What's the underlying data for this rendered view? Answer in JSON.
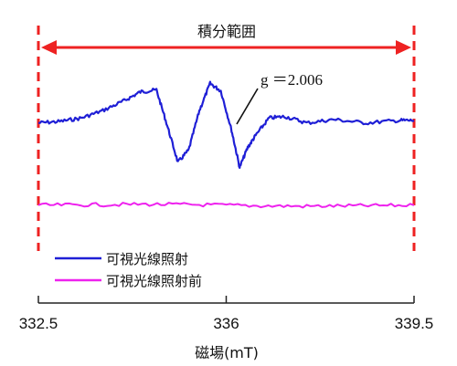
{
  "chart_data": {
    "type": "line",
    "xlabel": "磁場(mT)",
    "xlim": [
      332.5,
      339.5
    ],
    "x_ticks": [
      {
        "value": 332.5,
        "label": "332.5"
      },
      {
        "value": 336,
        "label": "336"
      },
      {
        "value": 339.5,
        "label": "339.5"
      }
    ],
    "grid": false,
    "legend_position": "bottom-left",
    "y_axis_shown": false,
    "series": [
      {
        "name": "可視光線照射",
        "color": "#1f1fd6",
        "x": [
          332.5,
          332.9,
          333.3,
          333.7,
          334.1,
          334.4,
          334.7,
          334.9,
          335.1,
          335.3,
          335.5,
          335.7,
          335.9,
          336.1,
          336.25,
          336.4,
          336.55,
          336.8,
          337.1,
          337.5,
          338.0,
          338.6,
          339.2,
          339.5
        ],
        "y": [
          -0.05,
          -0.02,
          0.05,
          0.2,
          0.4,
          0.58,
          0.62,
          -0.1,
          -0.85,
          -0.6,
          0.2,
          0.75,
          0.6,
          -0.2,
          -0.95,
          -0.55,
          -0.3,
          0.05,
          0.08,
          -0.05,
          0.02,
          -0.05,
          0.0,
          0.0
        ]
      },
      {
        "name": "可視光線照射前",
        "color": "#ee22ee",
        "x": [
          332.5,
          333.5,
          334.5,
          335.5,
          336.5,
          337.5,
          338.5,
          339.5
        ],
        "y": [
          -1.72,
          -1.71,
          -1.7,
          -1.71,
          -1.73,
          -1.74,
          -1.73,
          -1.72
        ]
      }
    ],
    "annotations": [
      {
        "text": "g ＝2.006",
        "x": 336.2,
        "y": 0.05
      },
      {
        "text": "積分範囲",
        "x_start": 332.5,
        "x_end": 339.5
      }
    ]
  },
  "colors": {
    "range_marker": "#ee2222",
    "axis": "#222222"
  }
}
